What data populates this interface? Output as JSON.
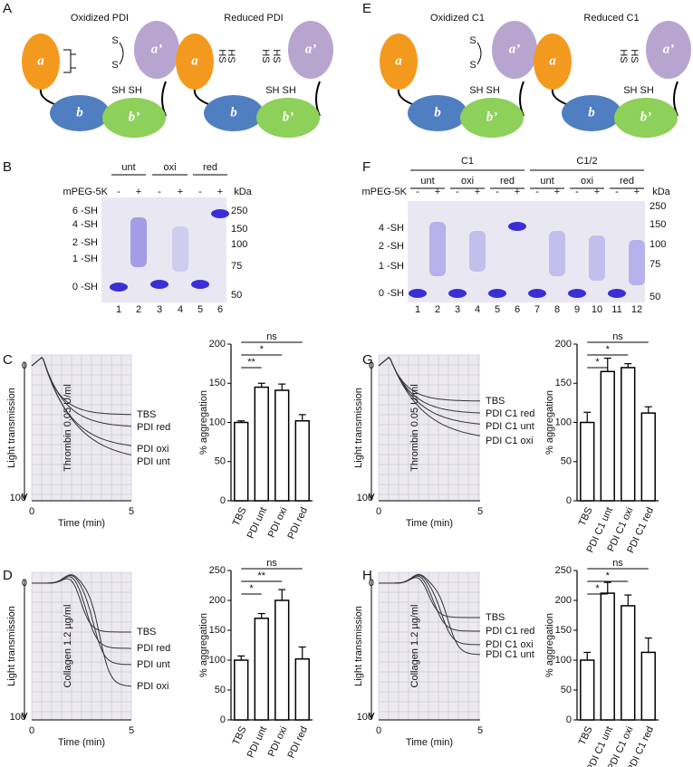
{
  "panel_letters": [
    "A",
    "B",
    "C",
    "D",
    "E",
    "F",
    "G",
    "H"
  ],
  "diagrams": [
    {
      "titles": [
        "Oxidized PDI",
        "Reduced PDI"
      ],
      "domains": [
        "a",
        "a’",
        "b",
        "b’"
      ],
      "oxidized_labels": [
        "S",
        "S",
        "SH SH"
      ],
      "reduced_labels": [
        "HS",
        "HS",
        "HS",
        "HS",
        "SH SH"
      ]
    },
    {
      "titles": [
        "Oxidized C1",
        "Reduced C1"
      ],
      "domains": [
        "a",
        "a’",
        "b",
        "b’"
      ],
      "oxidized_labels": [
        "S",
        "S",
        "SH SH"
      ],
      "reduced_labels": [
        "HS",
        "HS",
        "SH SH"
      ]
    }
  ],
  "gels": [
    {
      "treatment_label": "mPEG-5K",
      "unit": "kDa",
      "groups": [
        "unt",
        "oxi",
        "red"
      ],
      "signs": [
        "-",
        "+"
      ],
      "lanes": [
        "1",
        "2",
        "3",
        "4",
        "5",
        "6"
      ],
      "sh_labels": [
        "6 -SH",
        "4 -SH",
        "2 -SH",
        "1 -SH",
        "0 -SH"
      ],
      "mw": [
        "250",
        "150",
        "100",
        "75",
        "50"
      ]
    },
    {
      "treatment_label": "mPEG-5K",
      "unit": "kDa",
      "sets": [
        "C1",
        "C1/2"
      ],
      "groups": [
        "unt",
        "oxi",
        "red",
        "unt",
        "oxi",
        "red"
      ],
      "signs": [
        "-",
        "+"
      ],
      "lanes": [
        "1",
        "2",
        "3",
        "4",
        "5",
        "6",
        "7",
        "8",
        "9",
        "10",
        "11",
        "12"
      ],
      "sh_labels": [
        "4 -SH",
        "2 -SH",
        "1 -SH",
        "0 -SH"
      ],
      "mw": [
        "250",
        "150",
        "100",
        "75",
        "50"
      ]
    }
  ],
  "traces": [
    {
      "y_label": "Light transmission",
      "y_ticks": [
        "0",
        "100"
      ],
      "x_ticks": [
        "0",
        "5"
      ],
      "x_label": "Time (min)",
      "agonist": "Thrombin 0.05 U/ml",
      "curves": [
        "TBS",
        "PDI red",
        "PDI oxi",
        "PDI unt"
      ]
    },
    {
      "y_label": "Light transmission",
      "y_ticks": [
        "0",
        "100"
      ],
      "x_ticks": [
        "0",
        "5"
      ],
      "x_label": "Time (min)",
      "agonist": "Collagen 1.2 µg/ml",
      "curves": [
        "TBS",
        "PDI red",
        "PDI unt",
        "PDI oxi"
      ]
    },
    {
      "y_label": "Light transmission",
      "y_ticks": [
        "0",
        "100"
      ],
      "x_ticks": [
        "0",
        "5"
      ],
      "x_label": "Time (min)",
      "agonist": "Thrombin 0.05 U/ml",
      "curves": [
        "TBS",
        "PDI C1 red",
        "PDI C1 unt",
        "PDI C1 oxi"
      ]
    },
    {
      "y_label": "Light transmission",
      "y_ticks": [
        "0",
        "100"
      ],
      "x_ticks": [
        "0",
        "5"
      ],
      "x_label": "Time (min)",
      "agonist": "Collagen 1.2 µg/ml",
      "curves": [
        "TBS",
        "PDI C1 red",
        "PDI C1 oxi",
        "PDI C1 unt"
      ]
    }
  ],
  "chart_data": [
    {
      "type": "bar",
      "ylabel": "% aggregation",
      "categories": [
        "TBS",
        "PDI unt",
        "PDI oxi",
        "PDI red"
      ],
      "values": [
        100,
        145,
        141,
        102
      ],
      "errors": [
        2,
        5,
        8,
        8
      ],
      "significance": [
        "**",
        "*",
        "ns"
      ],
      "ylim": [
        0,
        200
      ],
      "yticks": [
        0,
        50,
        100,
        150,
        200
      ],
      "color": "#ffffff"
    },
    {
      "type": "bar",
      "ylabel": "% aggregation",
      "categories": [
        "TBS",
        "PDI unt",
        "PDI oxi",
        "PDI red"
      ],
      "values": [
        100,
        170,
        200,
        102
      ],
      "errors": [
        7,
        8,
        18,
        20
      ],
      "significance": [
        "*",
        "**",
        "ns"
      ],
      "ylim": [
        0,
        250
      ],
      "yticks": [
        0,
        50,
        100,
        150,
        200,
        250
      ],
      "color": "#ffffff"
    },
    {
      "type": "bar",
      "ylabel": "% aggregation",
      "categories": [
        "TBS",
        "PDI C1 unt",
        "PDI C1 oxi",
        "PDI C1 red"
      ],
      "values": [
        100,
        165,
        170,
        112
      ],
      "errors": [
        13,
        17,
        5,
        8
      ],
      "significance": [
        "*",
        "*",
        "ns"
      ],
      "ylim": [
        0,
        200
      ],
      "yticks": [
        0,
        50,
        100,
        150,
        200
      ],
      "color": "#ffffff"
    },
    {
      "type": "bar",
      "ylabel": "% aggregation",
      "categories": [
        "TBS",
        "PDI C1 unt",
        "PDI C1 oxi",
        "PDI C1 red"
      ],
      "values": [
        100,
        212,
        191,
        113
      ],
      "errors": [
        13,
        18,
        18,
        24
      ],
      "significance": [
        "*",
        "*",
        "ns"
      ],
      "ylim": [
        0,
        250
      ],
      "yticks": [
        0,
        50,
        100,
        150,
        200,
        250
      ],
      "color": "#ffffff"
    }
  ]
}
